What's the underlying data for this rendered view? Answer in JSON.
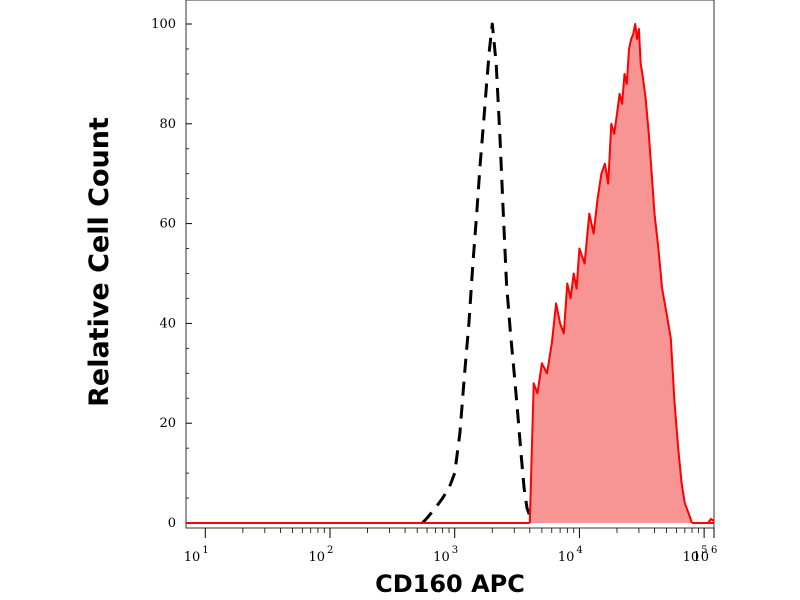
{
  "chart_data": {
    "type": "area",
    "xlabel": "CD160 APC",
    "ylabel": "Relative Cell Count",
    "x_scale": "log",
    "xlim": [
      7,
      120000
    ],
    "ylim": [
      0,
      100
    ],
    "x_ticks": [
      {
        "base": "10",
        "exp": "1",
        "value": 10
      },
      {
        "base": "10",
        "exp": "2",
        "value": 100
      },
      {
        "base": "10",
        "exp": "3",
        "value": 1000
      },
      {
        "base": "10",
        "exp": "4",
        "value": 10000
      },
      {
        "base": "10",
        "exp": "5",
        "value": 100000
      },
      {
        "base": "10",
        "exp": "6",
        "value": 1000000
      }
    ],
    "y_ticks": [
      "0",
      "20",
      "40",
      "60",
      "80",
      "100"
    ],
    "grid": false,
    "series": [
      {
        "style": "dashed",
        "color": "#000000",
        "fill": "none",
        "x": [
          550,
          600,
          700,
          800,
          900,
          1000,
          1100,
          1200,
          1300,
          1400,
          1500,
          1600,
          1700,
          1800,
          1900,
          2000,
          2150,
          2300,
          2450,
          2600,
          2800,
          3000,
          3200,
          3400,
          3600,
          3800,
          4200
        ],
        "y": [
          0,
          1,
          3,
          5,
          7,
          10,
          18,
          30,
          40,
          52,
          62,
          72,
          80,
          88,
          95,
          100,
          92,
          78,
          62,
          48,
          38,
          30,
          22,
          14,
          7,
          3,
          0
        ]
      },
      {
        "style": "solid",
        "color": "#ff0000",
        "fill": "#f79494",
        "x": [
          4000,
          4300,
          4600,
          5000,
          5500,
          6000,
          6500,
          7000,
          7500,
          8000,
          8500,
          9000,
          9500,
          10000,
          11000,
          12000,
          13000,
          14000,
          15000,
          16000,
          17000,
          18000,
          19000,
          20000,
          21000,
          22000,
          23000,
          24000,
          25000,
          26000,
          27000,
          28000,
          29000,
          30000,
          31000,
          32000,
          34000,
          36000,
          38000,
          40000,
          43000,
          46000,
          50000,
          54000,
          58000,
          62000,
          66000,
          70000,
          75000,
          80000
        ],
        "y": [
          0,
          28,
          26,
          32,
          30,
          36,
          44,
          40,
          38,
          48,
          45,
          50,
          47,
          55,
          52,
          62,
          58,
          65,
          70,
          72,
          68,
          80,
          78,
          82,
          86,
          84,
          90,
          88,
          95,
          97,
          98,
          100,
          97,
          99,
          92,
          90,
          85,
          78,
          70,
          62,
          55,
          47,
          42,
          37,
          24,
          15,
          8,
          4,
          2,
          0
        ]
      }
    ]
  }
}
